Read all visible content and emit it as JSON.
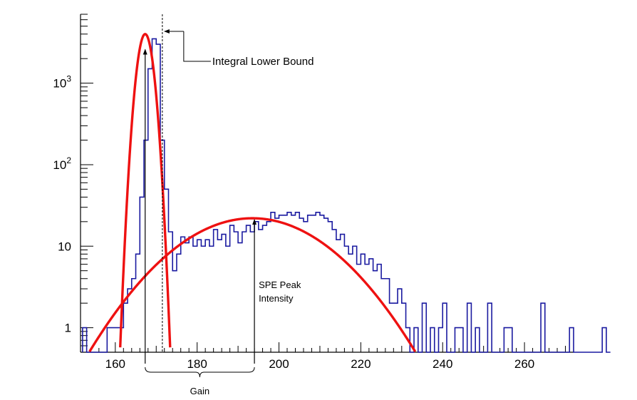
{
  "chart_data": {
    "type": "histogram",
    "title": "",
    "xlabel": "",
    "ylabel": "",
    "xlim": [
      151.5,
      272
    ],
    "ylim": [
      0.5,
      7000
    ],
    "yscale": "log",
    "grid": false,
    "x_ticks": [
      {
        "value": 160,
        "label": "160"
      },
      {
        "value": 180,
        "label": "180"
      },
      {
        "value": 200,
        "label": "200"
      },
      {
        "value": 220,
        "label": "220"
      },
      {
        "value": 240,
        "label": "240"
      },
      {
        "value": 260,
        "label": "260"
      }
    ],
    "y_ticks": [
      {
        "value": 1,
        "label": "1"
      },
      {
        "value": 10,
        "label": "10"
      },
      {
        "value": 100,
        "label": "10",
        "exp": "2"
      },
      {
        "value": 1000,
        "label": "10",
        "exp": "3"
      }
    ],
    "histogram": {
      "name": "",
      "color": "#1a1aa0",
      "bin_width": 1,
      "bin_start": 152,
      "counts": [
        1,
        0,
        0,
        0,
        0,
        0,
        1,
        1,
        1,
        1,
        2,
        3,
        4,
        8,
        40,
        200,
        1500,
        3500,
        3000,
        200,
        50,
        15,
        5,
        8,
        13,
        11,
        13,
        10,
        12,
        10,
        12,
        10,
        16,
        12,
        14,
        10,
        18,
        15,
        11,
        15,
        18,
        15,
        20,
        16,
        18,
        20,
        26,
        22,
        24,
        24,
        26,
        24,
        26,
        22,
        20,
        24,
        24,
        26,
        24,
        22,
        20,
        16,
        12,
        14,
        10,
        8,
        10,
        6,
        8,
        6,
        7,
        5,
        6,
        4,
        4,
        2,
        2,
        3,
        2,
        1,
        0,
        1,
        0,
        2,
        0,
        1,
        0,
        1,
        2,
        0,
        0,
        1,
        1,
        0,
        2,
        0,
        1,
        0,
        0,
        2,
        0,
        0,
        0,
        1,
        1,
        0,
        0,
        0,
        0,
        0,
        0,
        0,
        2,
        0,
        0,
        0,
        0,
        0,
        0,
        1,
        0,
        0,
        0,
        0,
        0,
        0,
        0,
        1,
        0
      ],
      "bins_note_hidden": ""
    },
    "fits": [
      {
        "name": "",
        "color": "#ee1111",
        "model": "gaussian",
        "amplitude": 4000,
        "mean": 167.3,
        "sigma": 1.45
      },
      {
        "name": "",
        "color": "#ee1111",
        "model": "gaussian",
        "amplitude": 22,
        "mean": 193.5,
        "sigma": 14.5
      }
    ]
  },
  "annotations": {
    "integral_lower_bound": {
      "label": "Integral Lower Bound",
      "x": 171.5
    },
    "spe_peak_intensity": {
      "label_line1": "SPE Peak",
      "label_line2": "Intensity",
      "x": 194,
      "y": 22
    },
    "pedestal_peak": {
      "x": 167.3,
      "y": 2800
    },
    "gain": {
      "label": "Gain",
      "x_from": 167.3,
      "x_to": 194
    }
  }
}
